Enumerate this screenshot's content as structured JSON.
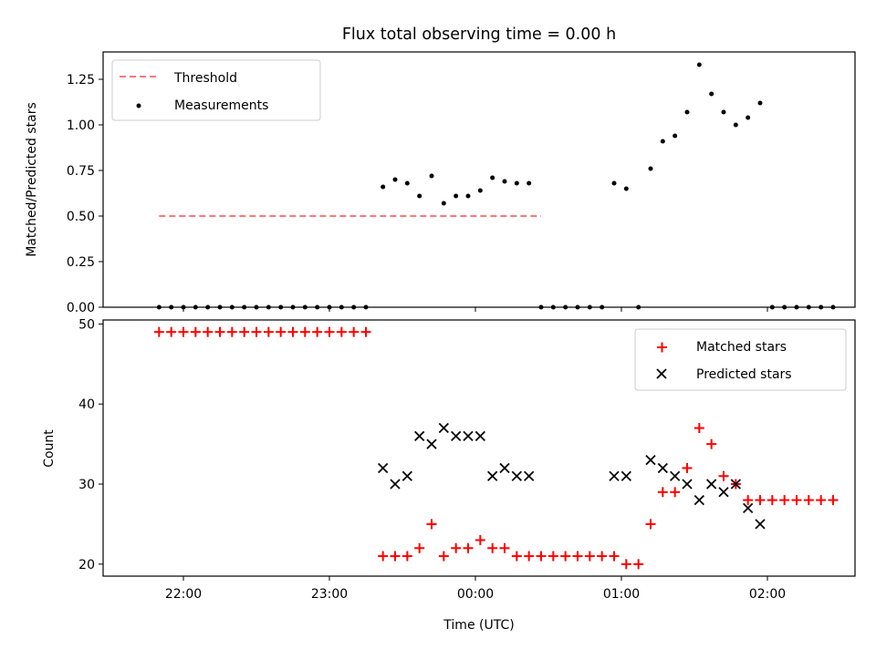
{
  "chart_data": [
    {
      "type": "scatter",
      "title": "Flux total observing time = 0.00 h",
      "ylabel": "Matched/Predicted stars",
      "ylim": [
        0,
        1.4
      ],
      "y_ticks": [
        "0.00",
        "0.25",
        "0.50",
        "0.75",
        "1.00",
        "1.25"
      ],
      "y_tick_values": [
        0,
        0.25,
        0.5,
        0.75,
        1.0,
        1.25
      ],
      "legend_position": "top-left",
      "threshold": {
        "name": "Threshold",
        "value": 0.5,
        "x_start": 21.8333,
        "x_end": 24.45,
        "color": "#ff7777"
      },
      "series": [
        {
          "name": "Measurements",
          "color": "#000000",
          "points": [
            [
              21.8333,
              0
            ],
            [
              21.9167,
              0
            ],
            [
              22.0,
              0
            ],
            [
              22.0833,
              0
            ],
            [
              22.1667,
              0
            ],
            [
              22.25,
              0
            ],
            [
              22.3333,
              0
            ],
            [
              22.4167,
              0
            ],
            [
              22.5,
              0
            ],
            [
              22.5833,
              0
            ],
            [
              22.6667,
              0
            ],
            [
              22.75,
              0
            ],
            [
              22.8333,
              0
            ],
            [
              22.9167,
              0
            ],
            [
              23.0,
              0
            ],
            [
              23.0833,
              0
            ],
            [
              23.1667,
              0
            ],
            [
              23.25,
              0
            ],
            [
              23.3667,
              0.66
            ],
            [
              23.45,
              0.7
            ],
            [
              23.5333,
              0.68
            ],
            [
              23.6167,
              0.61
            ],
            [
              23.7,
              0.72
            ],
            [
              23.7833,
              0.57
            ],
            [
              23.8667,
              0.61
            ],
            [
              23.95,
              0.61
            ],
            [
              24.0333,
              0.64
            ],
            [
              24.1167,
              0.71
            ],
            [
              24.2,
              0.69
            ],
            [
              24.2833,
              0.68
            ],
            [
              24.3667,
              0.68
            ],
            [
              24.45,
              0
            ],
            [
              24.5333,
              0
            ],
            [
              24.6167,
              0
            ],
            [
              24.7,
              0
            ],
            [
              24.7833,
              0
            ],
            [
              24.8667,
              0
            ],
            [
              24.95,
              0.68
            ],
            [
              25.0333,
              0.65
            ],
            [
              25.1167,
              0
            ],
            [
              25.2,
              0.76
            ],
            [
              25.2833,
              0.91
            ],
            [
              25.3667,
              0.94
            ],
            [
              25.45,
              1.07
            ],
            [
              25.5333,
              1.33
            ],
            [
              25.6167,
              1.17
            ],
            [
              25.7,
              1.07
            ],
            [
              25.7833,
              1.0
            ],
            [
              25.8667,
              1.04
            ],
            [
              25.95,
              1.12
            ],
            [
              26.0333,
              0
            ],
            [
              26.1167,
              0
            ],
            [
              26.2,
              0
            ],
            [
              26.2833,
              0
            ],
            [
              26.3667,
              0
            ],
            [
              26.45,
              0
            ]
          ]
        }
      ]
    },
    {
      "type": "scatter",
      "title": "",
      "xlabel": "Time (UTC)",
      "ylabel": "Count",
      "xlim": [
        21.45,
        26.6
      ],
      "ylim": [
        18.5,
        50.5
      ],
      "x_ticks": [
        "22:00",
        "23:00",
        "00:00",
        "01:00",
        "02:00"
      ],
      "x_tick_values": [
        22,
        23,
        24,
        25,
        26
      ],
      "y_ticks": [
        "20",
        "30",
        "40",
        "50"
      ],
      "y_tick_values": [
        20,
        30,
        40,
        50
      ],
      "legend_position": "top-right",
      "series": [
        {
          "name": "Matched stars",
          "marker": "plus",
          "color": "#ff0000",
          "points": [
            [
              21.8333,
              49
            ],
            [
              21.9167,
              49
            ],
            [
              22.0,
              49
            ],
            [
              22.0833,
              49
            ],
            [
              22.1667,
              49
            ],
            [
              22.25,
              49
            ],
            [
              22.3333,
              49
            ],
            [
              22.4167,
              49
            ],
            [
              22.5,
              49
            ],
            [
              22.5833,
              49
            ],
            [
              22.6667,
              49
            ],
            [
              22.75,
              49
            ],
            [
              22.8333,
              49
            ],
            [
              22.9167,
              49
            ],
            [
              23.0,
              49
            ],
            [
              23.0833,
              49
            ],
            [
              23.1667,
              49
            ],
            [
              23.25,
              49
            ],
            [
              23.3667,
              21
            ],
            [
              23.45,
              21
            ],
            [
              23.5333,
              21
            ],
            [
              23.6167,
              22
            ],
            [
              23.7,
              25
            ],
            [
              23.7833,
              21
            ],
            [
              23.8667,
              22
            ],
            [
              23.95,
              22
            ],
            [
              24.0333,
              23
            ],
            [
              24.1167,
              22
            ],
            [
              24.2,
              22
            ],
            [
              24.2833,
              21
            ],
            [
              24.3667,
              21
            ],
            [
              24.45,
              21
            ],
            [
              24.5333,
              21
            ],
            [
              24.6167,
              21
            ],
            [
              24.7,
              21
            ],
            [
              24.7833,
              21
            ],
            [
              24.8667,
              21
            ],
            [
              24.95,
              21
            ],
            [
              25.0333,
              20
            ],
            [
              25.1167,
              20
            ],
            [
              25.2,
              25
            ],
            [
              25.2833,
              29
            ],
            [
              25.3667,
              29
            ],
            [
              25.45,
              32
            ],
            [
              25.5333,
              37
            ],
            [
              25.6167,
              35
            ],
            [
              25.7,
              31
            ],
            [
              25.7833,
              30
            ],
            [
              25.8667,
              28
            ],
            [
              25.95,
              28
            ],
            [
              26.0333,
              28
            ],
            [
              26.1167,
              28
            ],
            [
              26.2,
              28
            ],
            [
              26.2833,
              28
            ],
            [
              26.3667,
              28
            ],
            [
              26.45,
              28
            ]
          ]
        },
        {
          "name": "Predicted stars",
          "marker": "x",
          "color": "#000000",
          "points": [
            [
              23.3667,
              32
            ],
            [
              23.45,
              30
            ],
            [
              23.5333,
              31
            ],
            [
              23.6167,
              36
            ],
            [
              23.7,
              35
            ],
            [
              23.7833,
              37
            ],
            [
              23.8667,
              36
            ],
            [
              23.95,
              36
            ],
            [
              24.0333,
              36
            ],
            [
              24.1167,
              31
            ],
            [
              24.2,
              32
            ],
            [
              24.2833,
              31
            ],
            [
              24.3667,
              31
            ],
            [
              24.95,
              31
            ],
            [
              25.0333,
              31
            ],
            [
              25.2,
              33
            ],
            [
              25.2833,
              32
            ],
            [
              25.3667,
              31
            ],
            [
              25.45,
              30
            ],
            [
              25.5333,
              28
            ],
            [
              25.6167,
              30
            ],
            [
              25.7,
              29
            ],
            [
              25.7833,
              30
            ],
            [
              25.8667,
              27
            ],
            [
              25.95,
              25
            ]
          ]
        }
      ]
    }
  ]
}
